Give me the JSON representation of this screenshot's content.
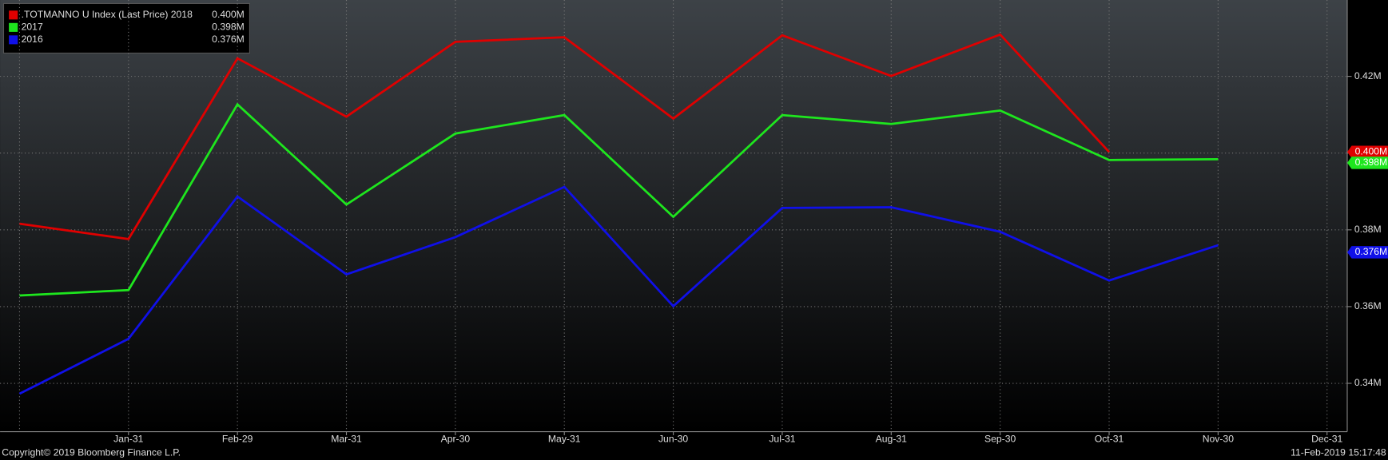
{
  "chart_data": {
    "type": "line",
    "categories": [
      null,
      "Jan-31",
      "Feb-29",
      "Mar-31",
      "Apr-30",
      "May-31",
      "Jun-30",
      "Jul-31",
      "Aug-31",
      "Sep-30",
      "Oct-31",
      "Nov-30",
      "Dec-31"
    ],
    "series": [
      {
        "name": ".TOTMANNO U Index (Last Price) 2018",
        "color": "#e00000",
        "values": [
          0.3816,
          0.3776,
          0.4247,
          0.4095,
          0.429,
          0.4302,
          0.409,
          0.4307,
          0.4201,
          0.4309,
          0.4003,
          null,
          null
        ],
        "value_labels": [
          null,
          null,
          null,
          null,
          null,
          null,
          null,
          null,
          null,
          null,
          "0.400M",
          null,
          null
        ]
      },
      {
        "name": "2017",
        "color": "#1ee61e",
        "values": [
          0.3629,
          0.3643,
          0.4127,
          0.3866,
          0.4051,
          0.4099,
          0.3834,
          0.4099,
          0.4076,
          0.4111,
          0.3982,
          0.3984,
          null
        ],
        "value_labels": [
          null,
          null,
          null,
          null,
          null,
          null,
          null,
          null,
          null,
          null,
          null,
          "0.398M",
          null
        ]
      },
      {
        "name": "2016",
        "color": "#1010e8",
        "values": [
          0.3373,
          0.3516,
          0.3887,
          0.3684,
          0.3781,
          0.3912,
          0.3601,
          0.3857,
          0.3859,
          0.3795,
          0.3668,
          0.376,
          null
        ],
        "value_labels": [
          null,
          null,
          null,
          null,
          null,
          null,
          null,
          null,
          null,
          null,
          null,
          "0.376M",
          null
        ]
      }
    ],
    "ylim": [
      0.3274,
      0.4399
    ],
    "yticks": [
      {
        "value": 0.34,
        "label": "0.34M"
      },
      {
        "value": 0.36,
        "label": "0.36M"
      },
      {
        "value": 0.38,
        "label": "0.38M"
      },
      {
        "value": 0.4,
        "label": "0.40M"
      },
      {
        "value": 0.42,
        "label": "0.42M"
      }
    ],
    "grid": true,
    "legend": "top-left",
    "footer_left": "Copyright© 2019 Bloomberg Finance L.P.",
    "footer_right": "11-Feb-2019 15:17:48"
  }
}
